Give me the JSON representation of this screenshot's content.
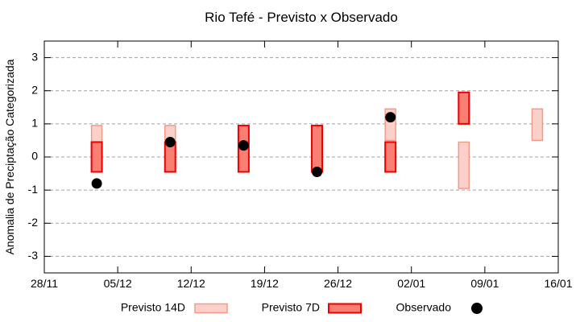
{
  "chart_data": {
    "type": "bar",
    "subtype": "range-bars-with-scatter-overlay",
    "title": "Rio Tefé - Previsto x Observado",
    "ylabel": "Anomalia de Preciptação Categorizada",
    "xlabel": "",
    "ylim": [
      -3.5,
      3.5
    ],
    "yticks": [
      -3,
      -2,
      -1,
      0,
      1,
      2,
      3
    ],
    "x_tick_labels": [
      "28/11",
      "05/12",
      "12/12",
      "19/12",
      "26/12",
      "02/01",
      "09/01",
      "16/01"
    ],
    "x_tick_days": [
      0,
      7,
      14,
      21,
      28,
      35,
      42,
      49
    ],
    "x_total_days": 49,
    "grid": "horizontal-dashed",
    "legend_position": "bottom",
    "colors": {
      "prev14_fill": "#fbd0c9",
      "prev14_border": "#f49a8b",
      "prev7_fill": "#f97f72",
      "prev7_border": "#ec0000",
      "observed": "#000000",
      "gridline": "#a0a0a0",
      "axis": "#000000"
    },
    "series": [
      {
        "name": "Previsto 14D",
        "kind": "range-bar",
        "points": [
          {
            "date": "03/12",
            "day": 5,
            "low": -0.45,
            "high": 0.95
          },
          {
            "date": "10/12",
            "day": 12,
            "low": -0.45,
            "high": 0.95
          },
          {
            "date": "31/12",
            "day": 33,
            "low": 0.5,
            "high": 1.45
          },
          {
            "date": "07/01",
            "day": 40,
            "low": -0.95,
            "high": 0.45
          },
          {
            "date": "14/01",
            "day": 47,
            "low": 0.5,
            "high": 1.45
          }
        ]
      },
      {
        "name": "Previsto 7D",
        "kind": "range-bar",
        "points": [
          {
            "date": "03/12",
            "day": 5,
            "low": -0.45,
            "high": 0.45
          },
          {
            "date": "10/12",
            "day": 12,
            "low": -0.45,
            "high": 0.45
          },
          {
            "date": "17/12",
            "day": 19,
            "low": -0.45,
            "high": 0.95
          },
          {
            "date": "24/12",
            "day": 26,
            "low": -0.45,
            "high": 0.95
          },
          {
            "date": "31/12",
            "day": 33,
            "low": -0.45,
            "high": 0.45
          },
          {
            "date": "07/01",
            "day": 40,
            "low": 1.0,
            "high": 1.95
          }
        ]
      },
      {
        "name": "Observado",
        "kind": "scatter",
        "points": [
          {
            "date": "03/12",
            "day": 5,
            "value": -0.8
          },
          {
            "date": "10/12",
            "day": 12,
            "value": 0.45
          },
          {
            "date": "17/12",
            "day": 19,
            "value": 0.35
          },
          {
            "date": "24/12",
            "day": 26,
            "value": -0.45
          },
          {
            "date": "31/12",
            "day": 33,
            "value": 1.2
          }
        ]
      }
    ],
    "legend": [
      {
        "label": "Previsto 14D",
        "swatch": "box-pink"
      },
      {
        "label": "Previsto 7D",
        "swatch": "box-red"
      },
      {
        "label": "Observado",
        "swatch": "dot-black"
      }
    ]
  }
}
